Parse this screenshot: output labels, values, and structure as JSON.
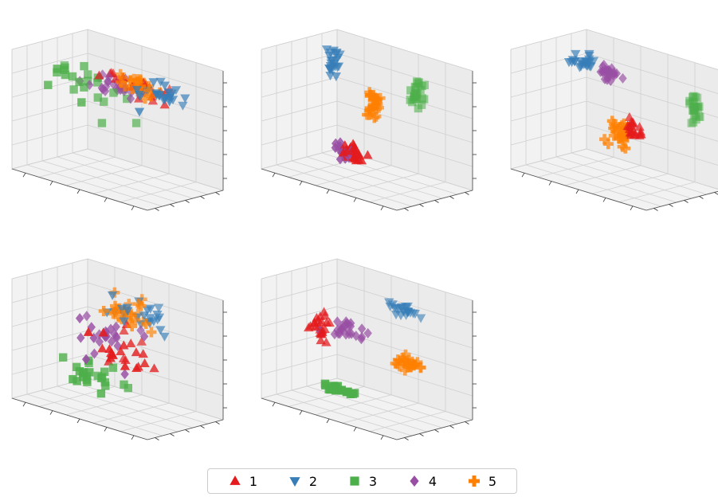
{
  "chart_data": {
    "type": "scatter",
    "projection": "3d",
    "grid": true,
    "legend_placement": "bottom-center",
    "colors": {
      "1": "#e41a1c",
      "2": "#377eb8",
      "3": "#4daf4a",
      "4": "#984ea3",
      "5": "#ff7f00"
    },
    "markers": {
      "1": "triangle-up",
      "2": "triangle-down",
      "3": "square",
      "4": "diamond",
      "5": "plus"
    },
    "legend": [
      {
        "label": "1",
        "marker": "triangle-up",
        "color": "#e41a1c"
      },
      {
        "label": "2",
        "marker": "triangle-down",
        "color": "#377eb8"
      },
      {
        "label": "3",
        "marker": "square",
        "color": "#4daf4a"
      },
      {
        "label": "4",
        "marker": "diamond",
        "color": "#984ea3"
      },
      {
        "label": "5",
        "marker": "plus",
        "color": "#ff7f00"
      }
    ],
    "panels": [
      {
        "series": [
          {
            "name": "1",
            "center": [
              0.55,
              0.62,
              0.78
            ],
            "spread": [
              0.18,
              0.1,
              0.05
            ]
          },
          {
            "name": "2",
            "center": [
              0.8,
              0.55,
              0.82
            ],
            "spread": [
              0.15,
              0.12,
              0.08
            ]
          },
          {
            "name": "3",
            "center": [
              0.25,
              0.55,
              0.7
            ],
            "spread": [
              0.2,
              0.15,
              0.18
            ]
          },
          {
            "name": "4",
            "center": [
              0.4,
              0.6,
              0.74
            ],
            "spread": [
              0.15,
              0.08,
              0.05
            ]
          },
          {
            "name": "5",
            "center": [
              0.62,
              0.6,
              0.8
            ],
            "spread": [
              0.12,
              0.08,
              0.05
            ]
          }
        ]
      },
      {
        "series": [
          {
            "name": "1",
            "center": [
              0.5,
              0.3,
              0.25
            ],
            "spread": [
              0.05,
              0.04,
              0.06
            ]
          },
          {
            "name": "2",
            "center": [
              0.2,
              0.6,
              0.85
            ],
            "spread": [
              0.04,
              0.04,
              0.07
            ]
          },
          {
            "name": "3",
            "center": [
              0.7,
              0.8,
              0.75
            ],
            "spread": [
              0.03,
              0.04,
              0.08
            ]
          },
          {
            "name": "4",
            "center": [
              0.45,
              0.3,
              0.25
            ],
            "spread": [
              0.05,
              0.04,
              0.06
            ]
          },
          {
            "name": "5",
            "center": [
              0.5,
              0.6,
              0.6
            ],
            "spread": [
              0.03,
              0.04,
              0.08
            ]
          }
        ]
      },
      {
        "series": [
          {
            "name": "1",
            "center": [
              0.6,
              0.55,
              0.45
            ],
            "spread": [
              0.06,
              0.04,
              0.06
            ]
          },
          {
            "name": "2",
            "center": [
              0.2,
              0.6,
              0.88
            ],
            "spread": [
              0.08,
              0.05,
              0.05
            ]
          },
          {
            "name": "3",
            "center": [
              0.85,
              0.9,
              0.65
            ],
            "spread": [
              0.02,
              0.04,
              0.08
            ]
          },
          {
            "name": "4",
            "center": [
              0.4,
              0.6,
              0.85
            ],
            "spread": [
              0.05,
              0.05,
              0.05
            ]
          },
          {
            "name": "5",
            "center": [
              0.5,
              0.55,
              0.38
            ],
            "spread": [
              0.06,
              0.04,
              0.08
            ]
          }
        ]
      },
      {
        "series": [
          {
            "name": "1",
            "center": [
              0.6,
              0.4,
              0.55
            ],
            "spread": [
              0.15,
              0.15,
              0.1
            ]
          },
          {
            "name": "2",
            "center": [
              0.6,
              0.6,
              0.8
            ],
            "spread": [
              0.15,
              0.1,
              0.08
            ]
          },
          {
            "name": "3",
            "center": [
              0.4,
              0.35,
              0.25
            ],
            "spread": [
              0.12,
              0.12,
              0.1
            ]
          },
          {
            "name": "4",
            "center": [
              0.45,
              0.45,
              0.6
            ],
            "spread": [
              0.15,
              0.15,
              0.12
            ]
          },
          {
            "name": "5",
            "center": [
              0.55,
              0.6,
              0.8
            ],
            "spread": [
              0.12,
              0.12,
              0.08
            ]
          }
        ]
      },
      {
        "series": [
          {
            "name": "1",
            "center": [
              0.15,
              0.5,
              0.55
            ],
            "spread": [
              0.05,
              0.05,
              0.07
            ]
          },
          {
            "name": "2",
            "center": [
              0.65,
              0.7,
              0.85
            ],
            "spread": [
              0.08,
              0.05,
              0.06
            ]
          },
          {
            "name": "3",
            "center": [
              0.45,
              0.2,
              0.2
            ],
            "spread": [
              0.08,
              0.03,
              0.02
            ]
          },
          {
            "name": "4",
            "center": [
              0.32,
              0.52,
              0.6
            ],
            "spread": [
              0.1,
              0.05,
              0.05
            ]
          },
          {
            "name": "5",
            "center": [
              0.75,
              0.6,
              0.45
            ],
            "spread": [
              0.08,
              0.05,
              0.04
            ]
          }
        ]
      }
    ]
  }
}
